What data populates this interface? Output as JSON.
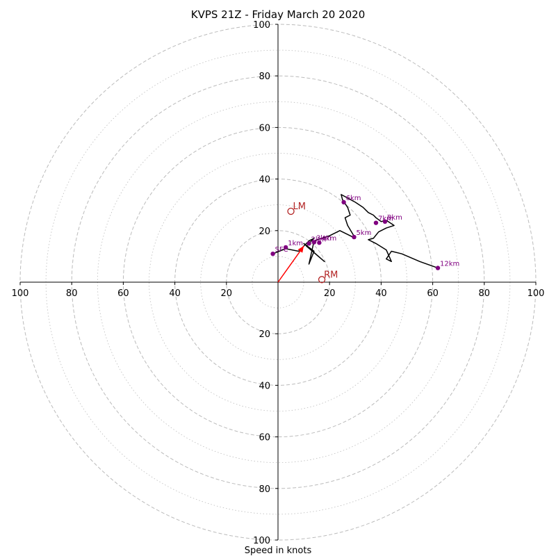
{
  "chart_data": {
    "type": "hodograph",
    "title": "KVPS 21Z - Friday March 20 2020",
    "xlabel": "Speed in knots",
    "xlim": [
      -100,
      100
    ],
    "ylim": [
      -100,
      100
    ],
    "ring_major": [
      20,
      40,
      60,
      80,
      100
    ],
    "ring_minor": [
      10,
      30,
      50,
      70,
      90
    ],
    "tick_labels_x": [
      "100",
      "80",
      "60",
      "40",
      "20",
      "20",
      "40",
      "60",
      "80",
      "100"
    ],
    "tick_values_x": [
      -100,
      -80,
      -60,
      -40,
      -20,
      20,
      40,
      60,
      80,
      100
    ],
    "tick_labels_y": [
      "100",
      "80",
      "60",
      "40",
      "20",
      "20",
      "40",
      "60",
      "80",
      "100"
    ],
    "tick_values_y": [
      100,
      80,
      60,
      40,
      20,
      -20,
      -40,
      -60,
      -80,
      -100
    ],
    "profile": [
      [
        -2,
        11
      ],
      [
        3,
        13
      ],
      [
        8,
        12
      ],
      [
        12,
        16
      ],
      [
        14,
        17
      ],
      [
        11,
        14
      ],
      [
        18,
        8
      ],
      [
        10,
        15
      ],
      [
        14,
        12
      ],
      [
        12,
        7
      ],
      [
        14,
        16
      ],
      [
        20,
        18
      ],
      [
        24,
        20
      ],
      [
        28,
        18
      ],
      [
        30,
        17
      ],
      [
        27,
        22
      ],
      [
        26,
        25
      ],
      [
        28,
        26
      ],
      [
        27,
        29
      ],
      [
        25,
        32
      ],
      [
        24.5,
        34
      ],
      [
        30,
        31
      ],
      [
        33,
        29
      ],
      [
        35,
        27
      ],
      [
        37,
        26
      ],
      [
        38,
        25
      ],
      [
        40,
        23.5
      ],
      [
        42,
        24
      ],
      [
        45,
        22
      ],
      [
        42,
        21
      ],
      [
        39,
        19.5
      ],
      [
        37,
        17
      ],
      [
        35,
        16.5
      ],
      [
        38,
        15
      ],
      [
        42,
        12.5
      ],
      [
        44,
        8
      ],
      [
        42,
        9
      ],
      [
        44,
        12
      ],
      [
        48,
        11
      ],
      [
        55,
        8
      ],
      [
        62,
        5.5
      ]
    ],
    "height_points": [
      {
        "label": "SFC",
        "u": -2,
        "v": 11
      },
      {
        "label": "1km",
        "u": 3,
        "v": 13.5
      },
      {
        "label": "2km",
        "u": 12,
        "v": 15
      },
      {
        "label": "3km",
        "u": 14,
        "v": 15.5
      },
      {
        "label": "4km",
        "u": 16,
        "v": 15.3
      },
      {
        "label": "5km",
        "u": 29.5,
        "v": 17.5
      },
      {
        "label": "6km",
        "u": 25.5,
        "v": 31
      },
      {
        "label": "7km",
        "u": 38,
        "v": 23
      },
      {
        "label": "8km",
        "u": 41.5,
        "v": 23.5
      },
      {
        "label": "12km",
        "u": 62,
        "v": 5.5
      }
    ],
    "storm_motion": {
      "u": 10,
      "v": 14
    },
    "left_mover": {
      "label": "LM",
      "u": 5,
      "v": 27.5
    },
    "right_mover": {
      "label": "RM",
      "u": 17,
      "v": 1
    },
    "colors": {
      "profile": "#000000",
      "height_points": "#800080",
      "storm_motion": "#ff0000",
      "movers": "#b22222",
      "grid": "#bbbbbb"
    }
  }
}
